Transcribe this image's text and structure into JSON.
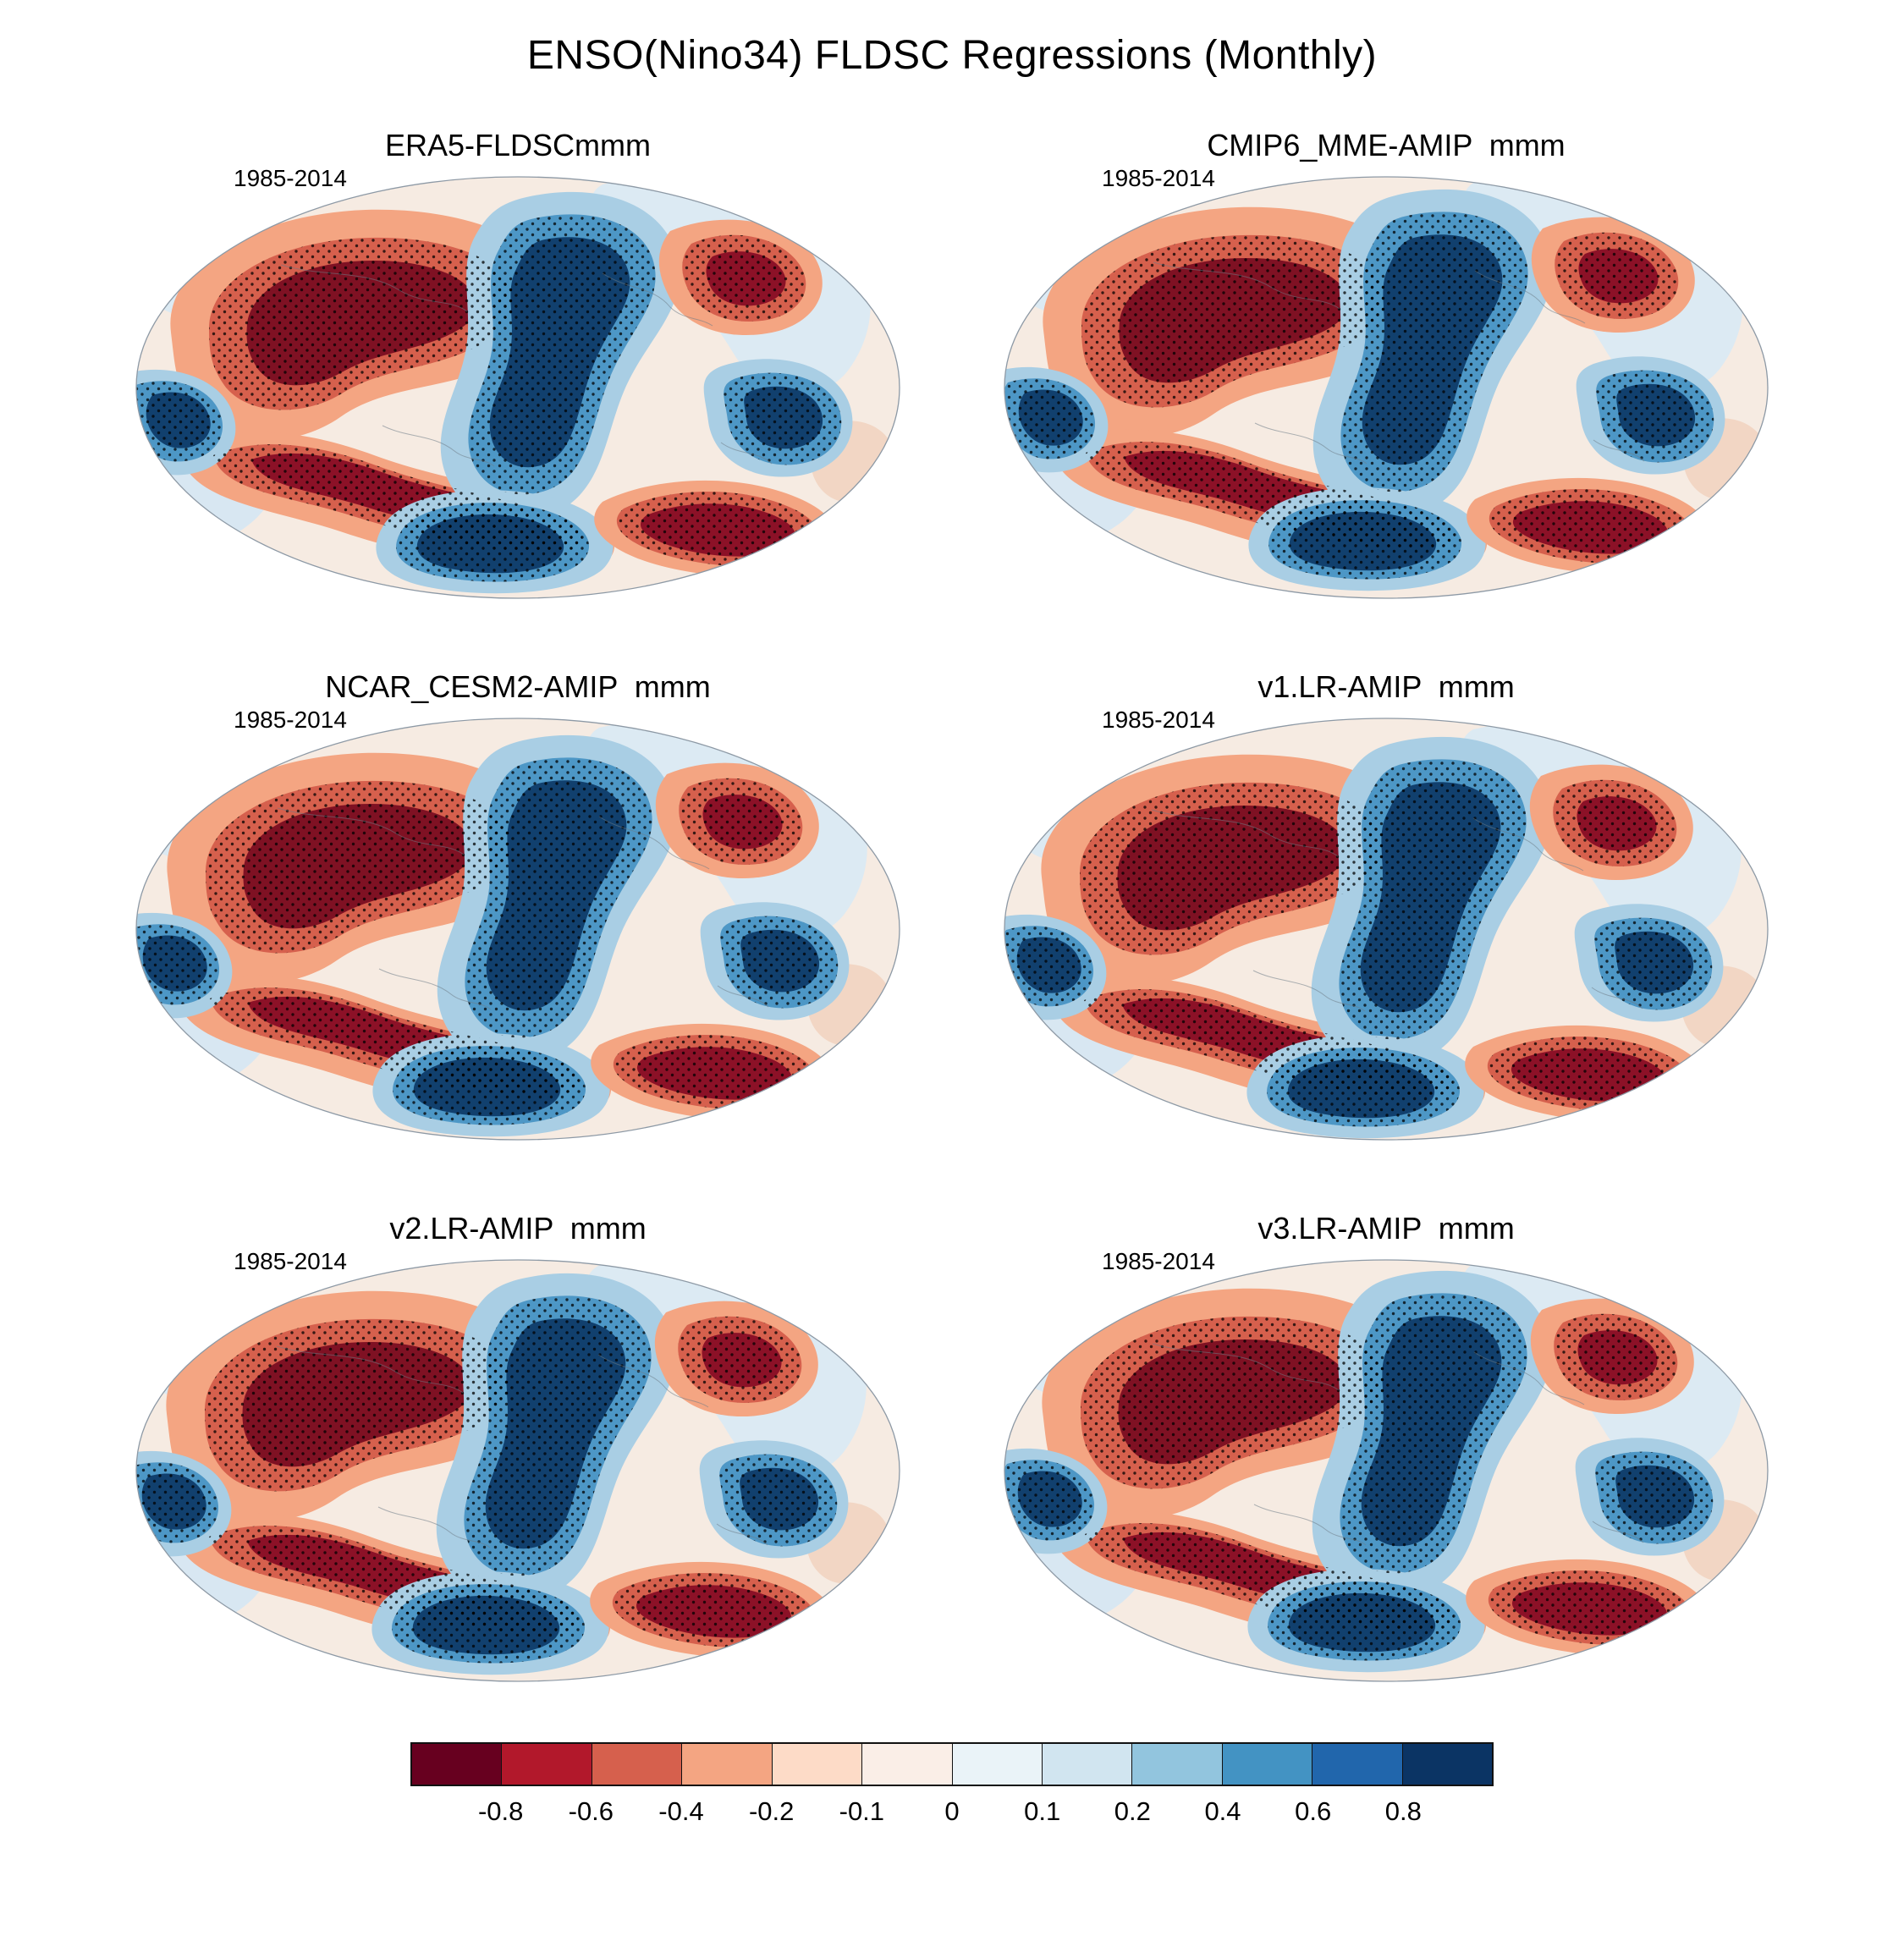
{
  "figure": {
    "title": "ENSO(Nino34) FLDSC Regressions (Monthly)",
    "panels": [
      {
        "title": "ERA5-FLDSCmmm",
        "period": "1985-2014"
      },
      {
        "title": "CMIP6_MME-AMIP  mmm",
        "period": "1985-2014"
      },
      {
        "title": "NCAR_CESM2-AMIP  mmm",
        "period": "1985-2014"
      },
      {
        "title": "v1.LR-AMIP  mmm",
        "period": "1985-2014"
      },
      {
        "title": "v2.LR-AMIP  mmm",
        "period": "1985-2014"
      },
      {
        "title": "v3.LR-AMIP  mmm",
        "period": "1985-2014"
      }
    ],
    "colorbar": {
      "tick_labels": [
        "-0.8",
        "-0.6",
        "-0.4",
        "-0.2",
        "-0.1",
        "0",
        "0.1",
        "0.2",
        "0.4",
        "0.6",
        "0.8"
      ],
      "segment_colors": [
        "#67001f",
        "#b2182b",
        "#d6604d",
        "#f4a582",
        "#fddbc7",
        "#faeee7",
        "#eaf3f8",
        "#d1e5f0",
        "#92c5de",
        "#4393c3",
        "#2166ac",
        "#0b3464"
      ]
    }
  },
  "chart_data": {
    "type": "heatmap",
    "title": "ENSO(Nino34) FLDSC Regressions (Monthly)",
    "layout": {
      "rows": 3,
      "cols": 2,
      "legend_position": "bottom"
    },
    "projection": "global elliptical map (Winkel/Robinson-like), repeated per panel",
    "panels": [
      {
        "title": "ERA5-FLDSCmmm",
        "period": "1985-2014"
      },
      {
        "title": "CMIP6_MME-AMIP  mmm",
        "period": "1985-2014"
      },
      {
        "title": "NCAR_CESM2-AMIP  mmm",
        "period": "1985-2014"
      },
      {
        "title": "v1.LR-AMIP  mmm",
        "period": "1985-2014"
      },
      {
        "title": "v2.LR-AMIP  mmm",
        "period": "1985-2014"
      },
      {
        "title": "v3.LR-AMIP  mmm",
        "period": "1985-2014"
      }
    ],
    "colorbar": {
      "orientation": "horizontal",
      "ticks": [
        -0.8,
        -0.6,
        -0.4,
        -0.2,
        -0.1,
        0,
        0.1,
        0.2,
        0.4,
        0.6,
        0.8
      ],
      "segment_colors": [
        "#67001f",
        "#b2182b",
        "#d6604d",
        "#f4a582",
        "#fddbc7",
        "#faeee7",
        "#eaf3f8",
        "#d1e5f0",
        "#92c5de",
        "#4393c3",
        "#2166ac",
        "#0b3464"
      ],
      "negative_side_color_family": "red",
      "positive_side_color_family": "blue"
    },
    "overlay": "black dot stippling over strongly shaded (dark red / dark blue) regions"
  }
}
